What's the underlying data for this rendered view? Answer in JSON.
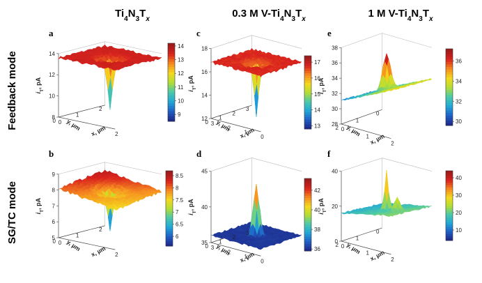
{
  "columns": [
    {
      "main": "Ti",
      "s1": "4",
      "m1": "N",
      "s2": "3",
      "m2": "T",
      "sub": "x"
    },
    {
      "main": "0.3 M V-Ti",
      "s1": "4",
      "m1": "N",
      "s2": "3",
      "m2": "T",
      "sub": "x"
    },
    {
      "main": "1 M V-Ti",
      "s1": "4",
      "m1": "N",
      "s2": "3",
      "m2": "T",
      "sub": "x"
    }
  ],
  "rows": [
    "Feedback mode",
    "SG/TC mode"
  ],
  "axis_labels": {
    "z": "i",
    "z_sub": "T",
    "z_unit": ", pA",
    "x": "x, µm",
    "y": "y, µm"
  },
  "colormap": [
    "#1e2a8c",
    "#1f63c8",
    "#22a9d8",
    "#4cc9a8",
    "#b4de34",
    "#f4d81e",
    "#f68a1f",
    "#d9221d",
    "#9d1b1b"
  ],
  "chart_data": [
    {
      "type": "surface",
      "panel": "a",
      "zlim": [
        8,
        14
      ],
      "z_ticks": [
        "8",
        "10",
        "12",
        "14"
      ],
      "colorbar": {
        "range": [
          8.5,
          14.2
        ],
        "ticks": [
          "9",
          "10",
          "11",
          "12",
          "13",
          "14"
        ]
      },
      "x_ticks": [
        "0",
        "2"
      ],
      "y_ticks": [
        "2",
        "1",
        "0"
      ],
      "shape": {
        "base": 13.6,
        "amp": -5.0,
        "sigma": 0.1,
        "ring": 0.4,
        "noise": 0.25,
        "tilt_x": 0,
        "tilt_y": 0
      }
    },
    {
      "type": "surface",
      "panel": "b",
      "zlim": [
        5,
        9
      ],
      "z_ticks": [
        "5",
        "6",
        "7",
        "8",
        "9"
      ],
      "colorbar": {
        "range": [
          5.6,
          8.7
        ],
        "ticks": [
          "6",
          "6.5",
          "7",
          "7.5",
          "8",
          "8.5"
        ]
      },
      "x_ticks": [
        "0",
        "2"
      ],
      "y_ticks": [
        "2",
        "1",
        "0"
      ],
      "shape": {
        "base": 8.0,
        "amp": -2.6,
        "sigma": 0.1,
        "ring": 0.3,
        "noise": 0.18,
        "tilt_x": -0.6,
        "tilt_y": 0.4
      }
    },
    {
      "type": "surface",
      "panel": "c",
      "zlim": [
        12,
        18
      ],
      "z_ticks": [
        "12",
        "14",
        "16",
        "18"
      ],
      "colorbar": {
        "range": [
          12.8,
          17.4
        ],
        "ticks": [
          "13",
          "14",
          "15",
          "16",
          "17"
        ]
      },
      "x_ticks": [
        "3",
        "2",
        "1",
        "0"
      ],
      "y_ticks": [
        "3",
        "2",
        "1",
        "0"
      ],
      "shape": {
        "base": 16.8,
        "amp": -4.6,
        "sigma": 0.1,
        "ring": 0.3,
        "noise": 0.25,
        "tilt_x": 0,
        "tilt_y": 0
      }
    },
    {
      "type": "surface",
      "panel": "d",
      "zlim": [
        35,
        45
      ],
      "z_ticks": [
        "35",
        "40",
        "45"
      ],
      "colorbar": {
        "range": [
          35.8,
          43.2
        ],
        "ticks": [
          "36",
          "38",
          "40",
          "42"
        ]
      },
      "x_ticks": [
        "3",
        "2",
        "1",
        "0"
      ],
      "y_ticks": [
        "3",
        "2",
        "1",
        "0"
      ],
      "shape": {
        "base": 36.0,
        "amp": 7.2,
        "sigma": 0.12,
        "ring": 0,
        "noise": 0.25,
        "tilt_x": 0,
        "tilt_y": 0
      }
    },
    {
      "type": "surface",
      "panel": "e",
      "zlim": [
        28,
        38
      ],
      "z_ticks": [
        "28",
        "30",
        "32",
        "34",
        "36",
        "38"
      ],
      "colorbar": {
        "range": [
          29.6,
          37.2
        ],
        "ticks": [
          "30",
          "32",
          "34",
          "36"
        ]
      },
      "x_ticks": [
        "0",
        "1",
        "2"
      ],
      "y_ticks": [
        "0",
        "1",
        "2"
      ],
      "shape": {
        "base": 32.5,
        "amp": 4.8,
        "sigma": 0.15,
        "ring": 0,
        "noise": 0.25,
        "tilt_x": 3.2,
        "tilt_y": -0.4
      }
    },
    {
      "type": "surface",
      "panel": "f",
      "zlim": [
        0,
        40
      ],
      "z_ticks": [
        "0",
        "20",
        "40"
      ],
      "colorbar": {
        "range": [
          4,
          44
        ],
        "ticks": [
          "10",
          "20",
          "30",
          "40"
        ]
      },
      "x_ticks": [
        "0",
        "1",
        "2"
      ],
      "y_ticks": [
        "0",
        "1",
        "2"
      ],
      "shape": {
        "base": 18.0,
        "amp": 22.0,
        "sigma": 0.08,
        "ring": 0,
        "noise": 1.0,
        "tilt_x": 6,
        "tilt_y": -2,
        "second": 8.0
      }
    }
  ]
}
